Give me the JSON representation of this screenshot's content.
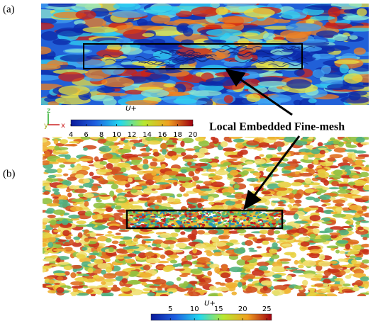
{
  "panels": [
    {
      "label": "(a)",
      "colorbar": {
        "title": "U+",
        "lim": [
          4,
          20
        ],
        "ticks": [
          4,
          6,
          8,
          10,
          12,
          14,
          16,
          18,
          20
        ]
      },
      "axes": [
        "z",
        "y",
        "x"
      ]
    },
    {
      "label": "(b)",
      "colorbar": {
        "title": "U+",
        "lim": [
          1,
          26
        ],
        "ticks": [
          5,
          10,
          15,
          20,
          25
        ]
      }
    }
  ],
  "annotation": "Local Embedded Fine-mesh"
}
